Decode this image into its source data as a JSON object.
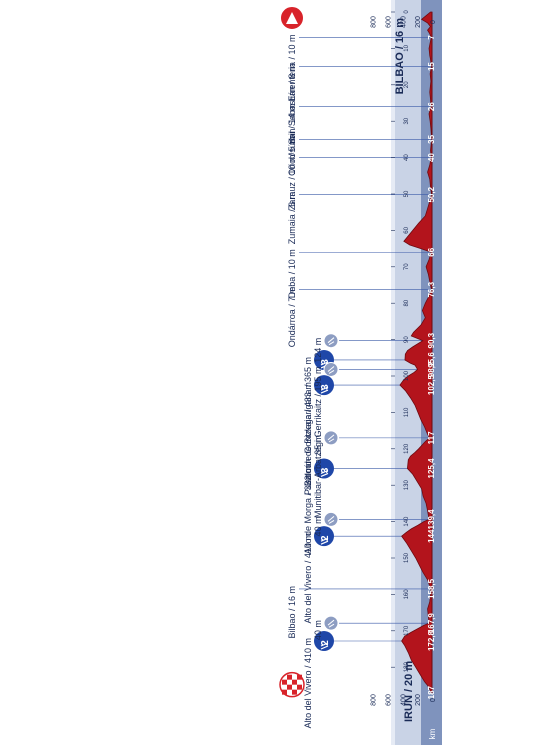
{
  "chart_data": {
    "type": "area",
    "start_label": "IRUN / 20 m",
    "finish_label": "BILBAO / 16 m",
    "x_unit_label": "km",
    "elevation_ticks": [
      800,
      600,
      400,
      200,
      0
    ],
    "distance_axis_ticks": [
      0,
      10,
      20,
      30,
      40,
      50,
      60,
      70,
      80,
      90,
      100,
      110,
      120,
      130,
      140,
      150,
      160,
      170,
      180
    ],
    "xlim": [
      0,
      187
    ],
    "ylim": [
      0,
      900
    ],
    "profile": [
      [
        0,
        20
      ],
      [
        1,
        80
      ],
      [
        2,
        140
      ],
      [
        3,
        60
      ],
      [
        4,
        20
      ],
      [
        5,
        60
      ],
      [
        6,
        30
      ],
      [
        7,
        10
      ],
      [
        8,
        20
      ],
      [
        10,
        40
      ],
      [
        12,
        30
      ],
      [
        13,
        20
      ],
      [
        15,
        8
      ],
      [
        17,
        25
      ],
      [
        19,
        15
      ],
      [
        22,
        30
      ],
      [
        24,
        20
      ],
      [
        26,
        14
      ],
      [
        28,
        40
      ],
      [
        30,
        25
      ],
      [
        32,
        15
      ],
      [
        35,
        5
      ],
      [
        38,
        20
      ],
      [
        40,
        10
      ],
      [
        42,
        30
      ],
      [
        44,
        60
      ],
      [
        46,
        30
      ],
      [
        48,
        20
      ],
      [
        50.2,
        6
      ],
      [
        52,
        30
      ],
      [
        54,
        60
      ],
      [
        56,
        90
      ],
      [
        58,
        180
      ],
      [
        60,
        260
      ],
      [
        62,
        340
      ],
      [
        63,
        380
      ],
      [
        64,
        300
      ],
      [
        65,
        150
      ],
      [
        66,
        10
      ],
      [
        68,
        40
      ],
      [
        70,
        80
      ],
      [
        72,
        50
      ],
      [
        74,
        30
      ],
      [
        76.3,
        7
      ],
      [
        78,
        40
      ],
      [
        80,
        90
      ],
      [
        82,
        130
      ],
      [
        84,
        90
      ],
      [
        86,
        150
      ],
      [
        88,
        250
      ],
      [
        89,
        280
      ],
      [
        90.3,
        124
      ],
      [
        91,
        180
      ],
      [
        92,
        260
      ],
      [
        93,
        330
      ],
      [
        94,
        360
      ],
      [
        95.6,
        365
      ],
      [
        96.5,
        290
      ],
      [
        97,
        230
      ],
      [
        98.2,
        195
      ],
      [
        99,
        240
      ],
      [
        100,
        320
      ],
      [
        101,
        380
      ],
      [
        102.5,
        433
      ],
      [
        104,
        360
      ],
      [
        106,
        290
      ],
      [
        108,
        230
      ],
      [
        110,
        190
      ],
      [
        112,
        150
      ],
      [
        114,
        100
      ],
      [
        116,
        60
      ],
      [
        117,
        35
      ],
      [
        118,
        90
      ],
      [
        120,
        180
      ],
      [
        121,
        230
      ],
      [
        122,
        290
      ],
      [
        123,
        320
      ],
      [
        125.4,
        332
      ],
      [
        127,
        260
      ],
      [
        129,
        200
      ],
      [
        131,
        140
      ],
      [
        133,
        120
      ],
      [
        135,
        80
      ],
      [
        137,
        60
      ],
      [
        139.4,
        40
      ],
      [
        140,
        110
      ],
      [
        141,
        190
      ],
      [
        142,
        280
      ],
      [
        143,
        350
      ],
      [
        144,
        410
      ],
      [
        146,
        340
      ],
      [
        148,
        280
      ],
      [
        150,
        220
      ],
      [
        152,
        170
      ],
      [
        154,
        120
      ],
      [
        156,
        60
      ],
      [
        158.5,
        16
      ],
      [
        160,
        20
      ],
      [
        162,
        30
      ],
      [
        164,
        60
      ],
      [
        166,
        50
      ],
      [
        167.9,
        40
      ],
      [
        168.5,
        110
      ],
      [
        169.5,
        200
      ],
      [
        170.5,
        290
      ],
      [
        171.5,
        370
      ],
      [
        172.8,
        410
      ],
      [
        174,
        370
      ],
      [
        176,
        320
      ],
      [
        178,
        280
      ],
      [
        180,
        220
      ],
      [
        182,
        160
      ],
      [
        184,
        100
      ],
      [
        185,
        60
      ],
      [
        186,
        30
      ],
      [
        187,
        16
      ]
    ],
    "waypoints": [
      {
        "km": 0,
        "km_label": "",
        "label": "",
        "icon": "start-icon"
      },
      {
        "km": 7,
        "km_label": "7",
        "label": "Errenteria / 10 m",
        "icon": ""
      },
      {
        "km": 15,
        "km_label": "15",
        "label": "San Sebastián / 8 m",
        "icon": ""
      },
      {
        "km": 26,
        "km_label": "26",
        "label": "Usúrbil / 14 m",
        "icon": ""
      },
      {
        "km": 35,
        "km_label": "35",
        "label": "Orio / 5 m",
        "icon": ""
      },
      {
        "km": 40,
        "km_label": "40",
        "label": "Zarauz / 10 m",
        "icon": ""
      },
      {
        "km": 50.2,
        "km_label": "50,2",
        "label": "Zumaia / 6 m",
        "icon": ""
      },
      {
        "km": 66,
        "km_label": "66",
        "label": "Deba / 10 m",
        "icon": ""
      },
      {
        "km": 76.3,
        "km_label": "76,3",
        "label": "Ondárroa / 7 m",
        "icon": ""
      },
      {
        "km": 90.3,
        "km_label": "90,3",
        "label": "124 m",
        "icon": "intermediate-climb-icon"
      },
      {
        "km": 95.6,
        "km_label": "95,6",
        "label": "Puerto de Gontzagarigana / 365 m",
        "icon": "third-category-climb-icon",
        "category": "3"
      },
      {
        "km": 98.2,
        "km_label": "98,2",
        "label": "Munitibar-Arbatzegi Gerrikaitz / 195 m",
        "icon": "intermediate-climb-icon"
      },
      {
        "km": 102.5,
        "km_label": "102,5",
        "label": "Balcón de Bizkaia / 433 m",
        "icon": "third-category-climb-icon",
        "category": "3"
      },
      {
        "km": 117,
        "km_label": "117",
        "label": "35 m",
        "icon": "intermediate-climb-icon"
      },
      {
        "km": 125.4,
        "km_label": "125,4",
        "label": "Alto de Morga / 332 m",
        "icon": "third-category-climb-icon",
        "category": "3"
      },
      {
        "km": 139.4,
        "km_label": "139,4",
        "label": "40 m",
        "icon": "intermediate-climb-icon"
      },
      {
        "km": 144,
        "km_label": "144",
        "label": "Alto del Vivero / 410 m",
        "icon": "second-category-climb-icon",
        "category": "2"
      },
      {
        "km": 158.5,
        "km_label": "158,5",
        "label": "Bilbao / 16 m",
        "icon": ""
      },
      {
        "km": 167.9,
        "km_label": "167,9",
        "label": "40 m",
        "icon": "intermediate-climb-icon"
      },
      {
        "km": 172.8,
        "km_label": "172,8",
        "label": "Alto del Vivero / 410 m",
        "icon": "second-category-climb-icon",
        "category": "2"
      },
      {
        "km": 187,
        "km_label": "187",
        "label": "",
        "icon": "finish-flag-icon"
      }
    ],
    "colors": {
      "profile_fill": "#b3141c",
      "profile_dark": "#6e0a10",
      "axis_band": "#c9d3e6",
      "km_band": "#7f93bd",
      "climb_icon": "#1f47a8",
      "intermediate_icon": "#8d9dc2",
      "start_icon": "#d8232a",
      "guide_line": "#3a5aa8"
    }
  }
}
